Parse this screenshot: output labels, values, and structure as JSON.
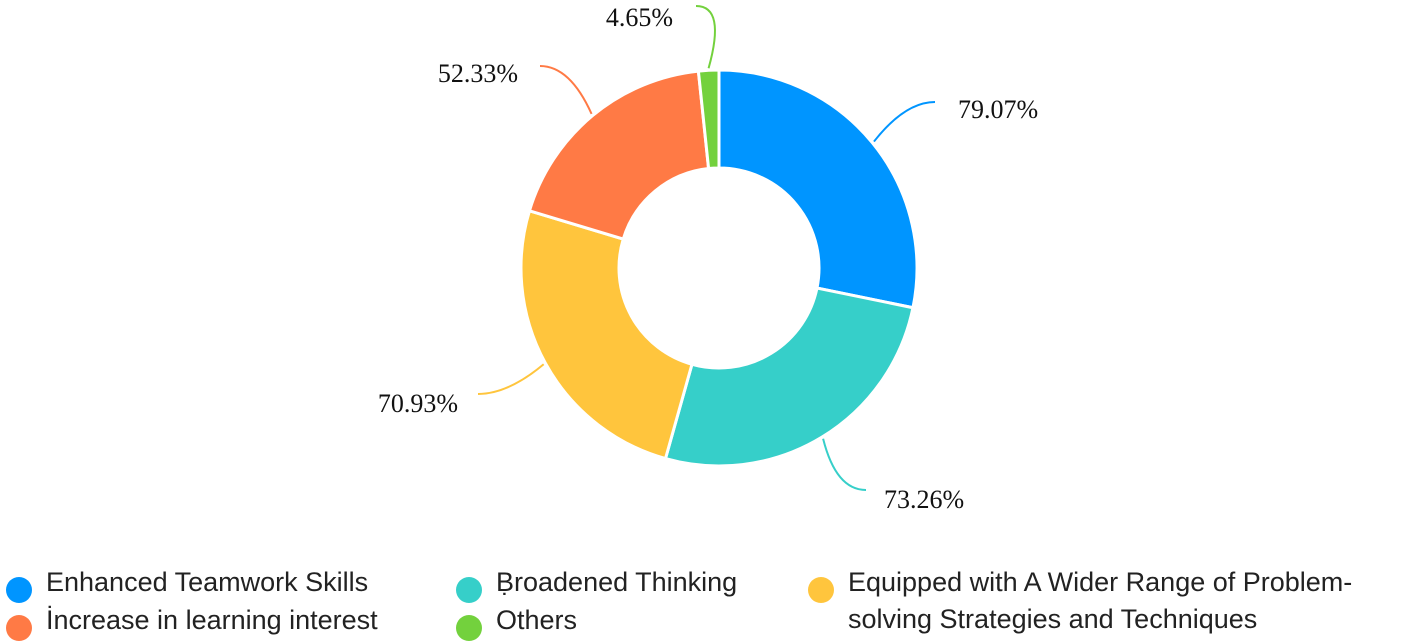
{
  "chart_data": {
    "type": "pie",
    "donut": true,
    "title": "",
    "series": [
      {
        "name": "Enhanced Teamwork Skills",
        "value": 79.07,
        "label": "79.07%",
        "color": "#0095FF"
      },
      {
        "name": "Broadened Thinking",
        "value": 73.26,
        "label": "73.26%",
        "color": "#36CFC9"
      },
      {
        "name": "Equipped with A Wider Range of Problem-solving Strategies and Techniques",
        "value": 70.93,
        "label": "70.93%",
        "color": "#FFC53D"
      },
      {
        "name": "Increase in learning interest",
        "value": 52.33,
        "label": "52.33%",
        "color": "#FF7A45"
      },
      {
        "name": "Others",
        "value": 4.65,
        "label": "4.65%",
        "color": "#73D13D"
      }
    ],
    "legend_position": "bottom"
  },
  "legend": {
    "items": [
      {
        "label": "Enhanced Teamwork Skills",
        "color": "#0095FF"
      },
      {
        "label": "İncrease in learning interest",
        "color": "#FF7A45"
      },
      {
        "label": "Ḅroadened Thinking",
        "color": "#36CFC9"
      },
      {
        "label": "Others",
        "color": "#73D13D"
      },
      {
        "label": "Equipped with A Wider Range of Problem-solving Strategies and Techniques",
        "color": "#FFC53D"
      }
    ]
  }
}
